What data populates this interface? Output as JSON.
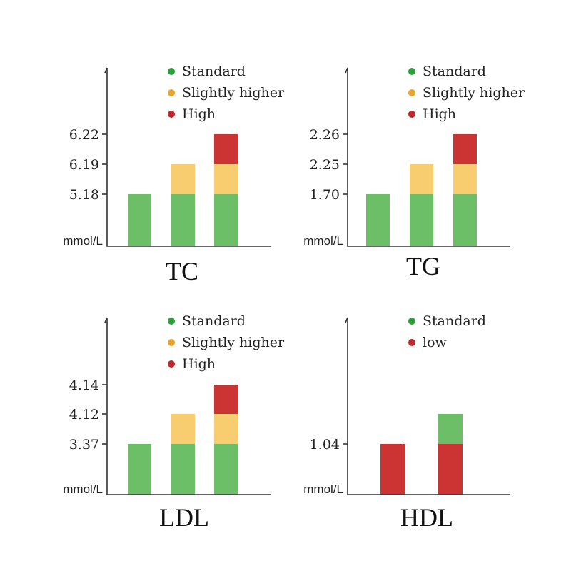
{
  "colors": {
    "standard_bar": "#6cbf66",
    "slightly_higher_bar": "#f7cd6f",
    "high_bar": "#cc3434",
    "standard_dot": "#2e9e3a",
    "slightly_higher_dot": "#eaa52c",
    "high_dot": "#c0282b",
    "axis": "#333333"
  },
  "chart_data": [
    {
      "type": "bar",
      "title": "TC",
      "unit_label": "mmol/L",
      "legend": [
        "Standard",
        "Slightly higher",
        "High"
      ],
      "ticks": [
        "5.18",
        "6.19",
        "6.22"
      ],
      "categories": [
        "Standard",
        "Slightly higher",
        "High"
      ],
      "segments_by_bar": [
        [
          "Standard"
        ],
        [
          "Standard",
          "Slightly higher"
        ],
        [
          "Standard",
          "Slightly higher",
          "High"
        ]
      ]
    },
    {
      "type": "bar",
      "title": "TG",
      "unit_label": "mmol/L",
      "legend": [
        "Standard",
        "Slightly higher",
        "High"
      ],
      "ticks": [
        "1.70",
        "2.25",
        "2.26"
      ],
      "categories": [
        "Standard",
        "Slightly higher",
        "High"
      ],
      "segments_by_bar": [
        [
          "Standard"
        ],
        [
          "Standard",
          "Slightly higher"
        ],
        [
          "Standard",
          "Slightly higher",
          "High"
        ]
      ]
    },
    {
      "type": "bar",
      "title": "LDL",
      "unit_label": "mmol/L",
      "legend": [
        "Standard",
        "Slightly higher",
        "High"
      ],
      "ticks": [
        "3.37",
        "4.12",
        "4.14"
      ],
      "categories": [
        "Standard",
        "Slightly higher",
        "High"
      ],
      "segments_by_bar": [
        [
          "Standard"
        ],
        [
          "Standard",
          "Slightly higher"
        ],
        [
          "Standard",
          "Slightly higher",
          "High"
        ]
      ]
    },
    {
      "type": "bar",
      "title": "HDL",
      "unit_label": "mmol/L",
      "legend": [
        "Standard",
        "low"
      ],
      "ticks": [
        "1.04"
      ],
      "categories": [
        "low",
        "Standard"
      ],
      "segments_by_bar": [
        [
          "low"
        ],
        [
          "low",
          "Standard"
        ]
      ]
    }
  ]
}
